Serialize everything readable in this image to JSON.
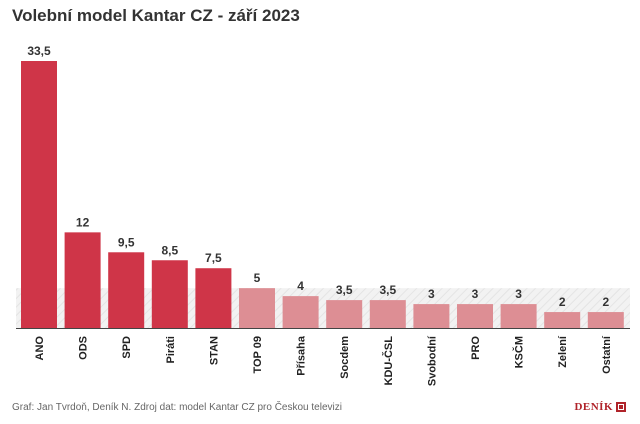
{
  "chart_data": {
    "type": "bar",
    "title": "Volební model Kantar CZ - září 2023",
    "categories": [
      "ANO",
      "ODS",
      "SPD",
      "Piráti",
      "STAN",
      "TOP 09",
      "Přísaha",
      "Socdem",
      "KDU-ČSL",
      "Svobodní",
      "PRO",
      "KSČM",
      "Zelení",
      "Ostatní"
    ],
    "values": [
      33.5,
      12,
      9.5,
      8.5,
      7.5,
      5,
      4,
      3.5,
      3.5,
      3,
      3,
      3,
      2,
      2
    ],
    "value_labels": [
      "33,5",
      "12",
      "9,5",
      "8,5",
      "7,5",
      "5",
      "4",
      "3,5",
      "3,5",
      "3",
      "3",
      "3",
      "2",
      "2"
    ],
    "threshold": 5,
    "ylim": [
      0,
      33.5
    ],
    "xlabel": "",
    "ylabel": "",
    "colors": {
      "above_threshold": "#cf3548",
      "below_threshold": "#dd8e94",
      "threshold_band": "#f2f2f2",
      "baseline": "#444444",
      "value_label": "#333333",
      "category_label": "#222222"
    }
  },
  "footer": {
    "source": "Graf: Jan Tvrdoň, Deník N. Zdroj dat: model Kantar CZ pro Českou televizi",
    "brand": "DENÍK"
  }
}
